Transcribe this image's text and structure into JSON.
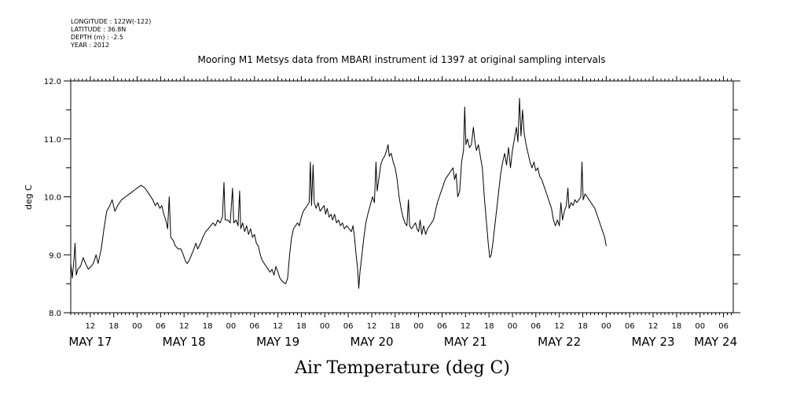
{
  "header": {
    "meta_lines": [
      "LONGITUDE : 122W(-122)",
      "LATITUDE : 36.8N",
      "DEPTH (m) : -2.5",
      "YEAR : 2012"
    ]
  },
  "chart_data": {
    "type": "line",
    "title": "Mooring M1 Metsys data from MBARI instrument id 1397 at original sampling intervals",
    "xlabel": "Air Temperature (deg C)",
    "ylabel": "deg C",
    "ylim": [
      8.0,
      12.0
    ],
    "y_ticks": [
      "8.0",
      "9.0",
      "10.0",
      "11.0",
      "12.0"
    ],
    "x_unit": "hours since 2012-05-16 00:00 UTC",
    "xlim": [
      7.0,
      176.5
    ],
    "hour_ticks": [
      {
        "h": 12,
        "label": "12"
      },
      {
        "h": 18,
        "label": "18"
      },
      {
        "h": 24,
        "label": "00"
      },
      {
        "h": 30,
        "label": "06"
      },
      {
        "h": 36,
        "label": "12"
      },
      {
        "h": 42,
        "label": "18"
      },
      {
        "h": 48,
        "label": "00"
      },
      {
        "h": 54,
        "label": "06"
      },
      {
        "h": 60,
        "label": "12"
      },
      {
        "h": 66,
        "label": "18"
      },
      {
        "h": 72,
        "label": "00"
      },
      {
        "h": 78,
        "label": "06"
      },
      {
        "h": 84,
        "label": "12"
      },
      {
        "h": 90,
        "label": "18"
      },
      {
        "h": 96,
        "label": "00"
      },
      {
        "h": 102,
        "label": "06"
      },
      {
        "h": 108,
        "label": "12"
      },
      {
        "h": 114,
        "label": "18"
      },
      {
        "h": 120,
        "label": "00"
      },
      {
        "h": 126,
        "label": "06"
      },
      {
        "h": 132,
        "label": "12"
      },
      {
        "h": 138,
        "label": "18"
      },
      {
        "h": 144,
        "label": "00"
      },
      {
        "h": 150,
        "label": "06"
      },
      {
        "h": 156,
        "label": "12"
      },
      {
        "h": 162,
        "label": "18"
      },
      {
        "h": 168,
        "label": "00"
      },
      {
        "h": 174,
        "label": "06"
      }
    ],
    "day_labels": [
      {
        "h": 12,
        "label": "MAY 17"
      },
      {
        "h": 36,
        "label": "MAY 18"
      },
      {
        "h": 60,
        "label": "MAY 19"
      },
      {
        "h": 84,
        "label": "MAY 20"
      },
      {
        "h": 108,
        "label": "MAY 21"
      },
      {
        "h": 132,
        "label": "MAY 22"
      },
      {
        "h": 156,
        "label": "MAY 23"
      },
      {
        "h": 172,
        "label": "MAY 24"
      }
    ],
    "series": [
      {
        "color": "#000000",
        "points": [
          [
            7.0,
            8.85
          ],
          [
            7.4,
            8.6
          ],
          [
            7.8,
            8.9
          ],
          [
            8.1,
            9.2
          ],
          [
            8.4,
            8.65
          ],
          [
            8.8,
            8.75
          ],
          [
            9.5,
            8.8
          ],
          [
            10.2,
            8.95
          ],
          [
            10.8,
            8.85
          ],
          [
            11.5,
            8.75
          ],
          [
            12.2,
            8.8
          ],
          [
            12.8,
            8.85
          ],
          [
            13.5,
            9.0
          ],
          [
            14.0,
            8.85
          ],
          [
            14.8,
            9.1
          ],
          [
            15.5,
            9.45
          ],
          [
            16.2,
            9.75
          ],
          [
            17.0,
            9.85
          ],
          [
            17.6,
            9.95
          ],
          [
            18.3,
            9.75
          ],
          [
            19.0,
            9.85
          ],
          [
            20.0,
            9.95
          ],
          [
            21.0,
            10.0
          ],
          [
            22.0,
            10.05
          ],
          [
            23.0,
            10.1
          ],
          [
            24.0,
            10.15
          ],
          [
            25.0,
            10.2
          ],
          [
            26.0,
            10.15
          ],
          [
            27.0,
            10.05
          ],
          [
            28.0,
            9.95
          ],
          [
            28.6,
            9.85
          ],
          [
            29.2,
            9.9
          ],
          [
            29.8,
            9.8
          ],
          [
            30.3,
            9.85
          ],
          [
            30.8,
            9.7
          ],
          [
            31.3,
            9.6
          ],
          [
            31.8,
            9.45
          ],
          [
            32.2,
            10.0
          ],
          [
            32.6,
            9.3
          ],
          [
            33.2,
            9.25
          ],
          [
            33.8,
            9.15
          ],
          [
            34.5,
            9.1
          ],
          [
            35.2,
            9.1
          ],
          [
            35.8,
            9.0
          ],
          [
            36.3,
            8.9
          ],
          [
            36.8,
            8.85
          ],
          [
            37.3,
            8.9
          ],
          [
            37.9,
            9.0
          ],
          [
            38.5,
            9.1
          ],
          [
            39.0,
            9.2
          ],
          [
            39.5,
            9.1
          ],
          [
            40.2,
            9.2
          ],
          [
            40.8,
            9.3
          ],
          [
            41.5,
            9.4
          ],
          [
            42.2,
            9.45
          ],
          [
            42.8,
            9.5
          ],
          [
            43.4,
            9.55
          ],
          [
            44.0,
            9.5
          ],
          [
            44.6,
            9.6
          ],
          [
            45.2,
            9.55
          ],
          [
            45.8,
            9.65
          ],
          [
            46.2,
            10.25
          ],
          [
            46.5,
            9.6
          ],
          [
            47.2,
            9.6
          ],
          [
            47.8,
            9.55
          ],
          [
            48.4,
            10.15
          ],
          [
            48.7,
            9.55
          ],
          [
            49.3,
            9.6
          ],
          [
            49.8,
            9.5
          ],
          [
            50.2,
            10.1
          ],
          [
            50.5,
            9.45
          ],
          [
            51.0,
            9.55
          ],
          [
            51.5,
            9.4
          ],
          [
            52.0,
            9.5
          ],
          [
            52.5,
            9.35
          ],
          [
            53.0,
            9.45
          ],
          [
            53.5,
            9.3
          ],
          [
            54.0,
            9.35
          ],
          [
            54.5,
            9.2
          ],
          [
            55.0,
            9.15
          ],
          [
            55.5,
            9.0
          ],
          [
            56.0,
            8.9
          ],
          [
            56.5,
            8.85
          ],
          [
            57.0,
            8.8
          ],
          [
            57.5,
            8.75
          ],
          [
            58.0,
            8.7
          ],
          [
            58.5,
            8.75
          ],
          [
            59.0,
            8.65
          ],
          [
            59.5,
            8.8
          ],
          [
            60.0,
            8.7
          ],
          [
            60.5,
            8.6
          ],
          [
            61.0,
            8.55
          ],
          [
            61.5,
            8.52
          ],
          [
            62.0,
            8.5
          ],
          [
            62.5,
            8.6
          ],
          [
            63.0,
            9.0
          ],
          [
            63.5,
            9.3
          ],
          [
            64.0,
            9.45
          ],
          [
            64.5,
            9.5
          ],
          [
            65.0,
            9.55
          ],
          [
            65.5,
            9.5
          ],
          [
            66.0,
            9.65
          ],
          [
            66.5,
            9.75
          ],
          [
            67.0,
            9.8
          ],
          [
            67.5,
            9.85
          ],
          [
            68.0,
            9.9
          ],
          [
            68.3,
            10.6
          ],
          [
            68.6,
            9.85
          ],
          [
            69.0,
            10.55
          ],
          [
            69.3,
            9.9
          ],
          [
            69.8,
            9.8
          ],
          [
            70.3,
            9.9
          ],
          [
            70.8,
            9.75
          ],
          [
            71.3,
            9.8
          ],
          [
            71.8,
            9.85
          ],
          [
            72.2,
            9.7
          ],
          [
            72.6,
            9.8
          ],
          [
            73.1,
            9.65
          ],
          [
            73.6,
            9.7
          ],
          [
            74.0,
            9.6
          ],
          [
            74.5,
            9.7
          ],
          [
            75.0,
            9.55
          ],
          [
            75.5,
            9.6
          ],
          [
            76.0,
            9.5
          ],
          [
            76.5,
            9.55
          ],
          [
            77.0,
            9.45
          ],
          [
            77.6,
            9.5
          ],
          [
            78.2,
            9.45
          ],
          [
            78.8,
            9.4
          ],
          [
            79.2,
            9.5
          ],
          [
            79.6,
            9.3
          ],
          [
            80.0,
            9.0
          ],
          [
            80.4,
            8.75
          ],
          [
            80.7,
            8.42
          ],
          [
            81.0,
            8.7
          ],
          [
            81.5,
            9.0
          ],
          [
            82.0,
            9.3
          ],
          [
            82.5,
            9.55
          ],
          [
            83.0,
            9.7
          ],
          [
            83.6,
            9.85
          ],
          [
            84.2,
            10.0
          ],
          [
            84.7,
            9.9
          ],
          [
            85.1,
            10.6
          ],
          [
            85.4,
            10.1
          ],
          [
            85.8,
            10.3
          ],
          [
            86.3,
            10.55
          ],
          [
            86.8,
            10.65
          ],
          [
            87.3,
            10.7
          ],
          [
            87.8,
            10.8
          ],
          [
            88.2,
            10.9
          ],
          [
            88.5,
            10.7
          ],
          [
            89.0,
            10.75
          ],
          [
            89.5,
            10.6
          ],
          [
            90.0,
            10.5
          ],
          [
            90.5,
            10.3
          ],
          [
            91.0,
            10.0
          ],
          [
            91.5,
            9.8
          ],
          [
            92.0,
            9.65
          ],
          [
            92.5,
            9.55
          ],
          [
            93.0,
            9.5
          ],
          [
            93.4,
            9.95
          ],
          [
            93.7,
            9.5
          ],
          [
            94.2,
            9.45
          ],
          [
            94.7,
            9.5
          ],
          [
            95.2,
            9.55
          ],
          [
            95.6,
            9.45
          ],
          [
            96.0,
            9.4
          ],
          [
            96.4,
            9.6
          ],
          [
            96.8,
            9.35
          ],
          [
            97.3,
            9.5
          ],
          [
            97.8,
            9.35
          ],
          [
            98.3,
            9.45
          ],
          [
            98.8,
            9.5
          ],
          [
            99.3,
            9.55
          ],
          [
            99.8,
            9.6
          ],
          [
            100.3,
            9.75
          ],
          [
            100.8,
            9.9
          ],
          [
            101.3,
            10.0
          ],
          [
            101.8,
            10.1
          ],
          [
            102.3,
            10.2
          ],
          [
            102.8,
            10.3
          ],
          [
            103.3,
            10.35
          ],
          [
            103.8,
            10.4
          ],
          [
            104.3,
            10.45
          ],
          [
            104.8,
            10.5
          ],
          [
            105.2,
            10.3
          ],
          [
            105.6,
            10.4
          ],
          [
            106.0,
            10.0
          ],
          [
            106.5,
            10.1
          ],
          [
            107.0,
            10.6
          ],
          [
            107.5,
            10.8
          ],
          [
            107.8,
            11.55
          ],
          [
            108.1,
            10.9
          ],
          [
            108.5,
            11.0
          ],
          [
            109.0,
            10.85
          ],
          [
            109.5,
            10.9
          ],
          [
            110.0,
            11.2
          ],
          [
            110.4,
            10.95
          ],
          [
            110.8,
            10.8
          ],
          [
            111.3,
            10.9
          ],
          [
            111.8,
            10.7
          ],
          [
            112.3,
            10.5
          ],
          [
            112.8,
            10.0
          ],
          [
            113.3,
            9.6
          ],
          [
            113.8,
            9.2
          ],
          [
            114.2,
            8.95
          ],
          [
            114.6,
            9.0
          ],
          [
            115.0,
            9.2
          ],
          [
            115.5,
            9.5
          ],
          [
            116.0,
            9.8
          ],
          [
            116.5,
            10.1
          ],
          [
            117.0,
            10.4
          ],
          [
            117.5,
            10.6
          ],
          [
            118.0,
            10.75
          ],
          [
            118.5,
            10.55
          ],
          [
            119.0,
            10.85
          ],
          [
            119.5,
            10.5
          ],
          [
            120.0,
            10.8
          ],
          [
            120.5,
            11.0
          ],
          [
            121.0,
            11.2
          ],
          [
            121.4,
            10.95
          ],
          [
            121.8,
            11.7
          ],
          [
            122.2,
            11.05
          ],
          [
            122.6,
            11.5
          ],
          [
            123.0,
            11.1
          ],
          [
            123.5,
            10.9
          ],
          [
            124.0,
            10.75
          ],
          [
            124.5,
            10.6
          ],
          [
            125.0,
            10.5
          ],
          [
            125.5,
            10.6
          ],
          [
            126.0,
            10.45
          ],
          [
            126.5,
            10.5
          ],
          [
            127.0,
            10.35
          ],
          [
            127.5,
            10.3
          ],
          [
            128.0,
            10.2
          ],
          [
            128.5,
            10.1
          ],
          [
            129.0,
            10.0
          ],
          [
            129.5,
            9.9
          ],
          [
            130.0,
            9.8
          ],
          [
            130.5,
            9.6
          ],
          [
            131.0,
            9.5
          ],
          [
            131.5,
            9.6
          ],
          [
            132.0,
            9.5
          ],
          [
            132.4,
            9.9
          ],
          [
            132.8,
            9.6
          ],
          [
            133.3,
            9.75
          ],
          [
            133.8,
            9.85
          ],
          [
            134.2,
            10.15
          ],
          [
            134.5,
            9.8
          ],
          [
            135.0,
            9.9
          ],
          [
            135.5,
            9.85
          ],
          [
            136.0,
            9.95
          ],
          [
            136.5,
            9.9
          ],
          [
            137.0,
            9.95
          ],
          [
            137.5,
            10.0
          ],
          [
            137.8,
            10.6
          ],
          [
            138.1,
            9.95
          ],
          [
            138.6,
            10.05
          ],
          [
            139.1,
            10.0
          ],
          [
            139.6,
            9.95
          ],
          [
            140.1,
            9.9
          ],
          [
            140.6,
            9.85
          ],
          [
            141.1,
            9.8
          ],
          [
            141.6,
            9.7
          ],
          [
            142.1,
            9.6
          ],
          [
            142.6,
            9.5
          ],
          [
            143.1,
            9.4
          ],
          [
            143.6,
            9.3
          ],
          [
            144.0,
            9.15
          ]
        ]
      }
    ]
  }
}
